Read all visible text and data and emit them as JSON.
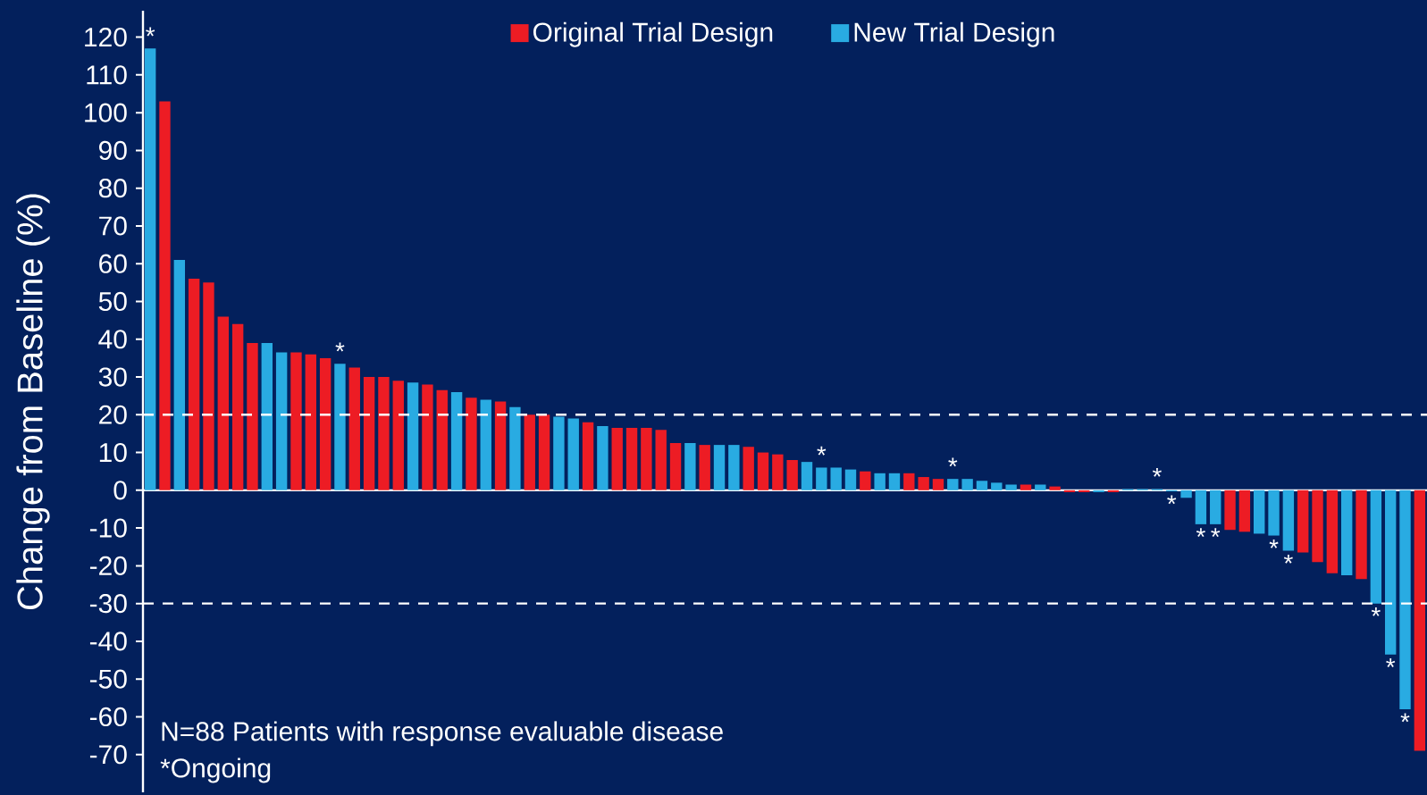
{
  "chart_data": {
    "type": "bar",
    "ylabel": "Change from Baseline (%)",
    "categories": [
      null,
      null,
      null,
      null,
      null,
      null,
      null,
      null,
      null,
      null,
      null,
      null,
      null,
      null,
      null,
      null,
      null,
      null,
      null,
      null,
      null,
      null,
      null,
      null,
      null,
      null,
      null,
      null,
      null,
      null,
      null,
      null,
      null,
      null,
      null,
      null,
      null,
      null,
      null,
      null,
      null,
      null,
      null,
      null,
      null,
      null,
      null,
      null,
      null,
      null,
      null,
      null,
      null,
      null,
      null,
      null,
      null,
      null,
      null,
      null,
      null,
      null,
      null,
      null,
      null,
      null,
      null,
      null,
      null,
      null,
      null,
      null,
      null,
      null,
      null,
      null,
      null,
      null,
      null,
      null,
      null,
      null,
      null,
      null,
      null,
      null,
      null,
      null
    ],
    "series": [
      {
        "name": "Original Trial Design",
        "color": "#ed1c24",
        "values": [
          null,
          103,
          null,
          56,
          55,
          46,
          44,
          39,
          null,
          null,
          36.5,
          36,
          35,
          null,
          32.5,
          30,
          30,
          29,
          null,
          28,
          26.5,
          null,
          24.5,
          null,
          23.5,
          null,
          20,
          20,
          null,
          null,
          18,
          null,
          16.5,
          16.5,
          16.5,
          16,
          12.5,
          null,
          12,
          null,
          null,
          11.5,
          10,
          9.5,
          8,
          null,
          null,
          null,
          null,
          5,
          null,
          null,
          4.5,
          3.5,
          3,
          null,
          null,
          null,
          null,
          null,
          1.5,
          null,
          1,
          -0.5,
          -0.5,
          null,
          -0.5,
          null,
          null,
          null,
          null,
          null,
          null,
          null,
          -10.5,
          -11,
          null,
          null,
          null,
          -16.5,
          -19,
          -22,
          null,
          -23.5,
          null,
          null,
          null,
          -69
        ]
      },
      {
        "name": "New Trial Design",
        "color": "#29abe2",
        "values": [
          117,
          null,
          61,
          null,
          null,
          null,
          null,
          null,
          39,
          36.5,
          null,
          null,
          null,
          33.5,
          null,
          null,
          null,
          null,
          28.5,
          null,
          null,
          26,
          null,
          24,
          null,
          22,
          null,
          null,
          19.5,
          19,
          null,
          17,
          null,
          null,
          null,
          null,
          null,
          12.5,
          null,
          12,
          12,
          null,
          null,
          null,
          null,
          7.5,
          6,
          6,
          5.5,
          null,
          4.5,
          4.5,
          null,
          null,
          null,
          3,
          3,
          2.5,
          2,
          1.5,
          null,
          1.5,
          null,
          null,
          null,
          -0.5,
          null,
          0.3,
          0.3,
          0.3,
          -0.3,
          -2,
          -9,
          -9,
          null,
          null,
          -11.5,
          -12,
          -16,
          null,
          null,
          null,
          -22.5,
          null,
          -30,
          -43.5,
          -58,
          null
        ],
        "value_labels": [
          "*",
          null,
          null,
          null,
          null,
          null,
          null,
          null,
          null,
          null,
          null,
          null,
          null,
          "*",
          null,
          null,
          null,
          null,
          null,
          null,
          null,
          null,
          null,
          null,
          null,
          null,
          null,
          null,
          null,
          null,
          null,
          null,
          null,
          null,
          null,
          null,
          null,
          null,
          null,
          null,
          null,
          null,
          null,
          null,
          null,
          null,
          "*",
          null,
          null,
          null,
          null,
          null,
          null,
          null,
          null,
          "*",
          null,
          null,
          null,
          null,
          null,
          null,
          null,
          null,
          null,
          null,
          null,
          null,
          null,
          "*",
          "*",
          null,
          "*",
          "*",
          null,
          null,
          null,
          "*",
          "*",
          null,
          null,
          null,
          null,
          null,
          "*",
          "*",
          "*",
          null
        ]
      }
    ],
    "ylim": [
      -80,
      127
    ],
    "yticks": [
      -70,
      -60,
      -50,
      -40,
      -30,
      -20,
      -10,
      0,
      10,
      20,
      30,
      40,
      50,
      60,
      70,
      80,
      90,
      100,
      110,
      120
    ],
    "ref_lines": [
      {
        "axis": "y",
        "value": 20,
        "color": "#ffffff",
        "line_style": "dashed"
      },
      {
        "axis": "y",
        "value": -30,
        "color": "#ffffff",
        "line_style": "dashed"
      }
    ],
    "annotations": [
      "N=88 Patients with response evaluable disease",
      "*Ongoing"
    ],
    "legend": "top",
    "tick_labels": "y",
    "grid": false
  }
}
